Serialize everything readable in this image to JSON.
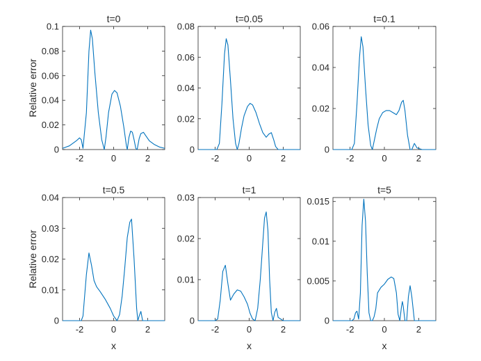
{
  "chart_data": [
    {
      "type": "line",
      "title": "t=0",
      "xlabel": "",
      "ylabel": "Relative error",
      "xlim": [
        -3,
        3
      ],
      "ylim": [
        0,
        0.1
      ],
      "xticks": [
        -2,
        0,
        2
      ],
      "xtick_labels": [
        "-2",
        "0",
        "2"
      ],
      "yticks": [
        0,
        0.02,
        0.04,
        0.06,
        0.08,
        0.1
      ],
      "ytick_labels": [
        "0",
        "0.02",
        "0.04",
        "0.06",
        "0.08",
        "0.1"
      ],
      "color": "#0072BD",
      "x": [
        -3,
        -2.6,
        -2.2,
        -2.0,
        -1.9,
        -1.8,
        -1.6,
        -1.45,
        -1.35,
        -1.25,
        -1.1,
        -0.9,
        -0.7,
        -0.55,
        -0.45,
        -0.3,
        -0.1,
        0.05,
        0.2,
        0.4,
        0.6,
        0.75,
        0.8,
        0.9,
        1.0,
        1.1,
        1.2,
        1.3,
        1.38,
        1.5,
        1.6,
        1.75,
        1.9,
        2.1,
        2.4,
        2.7,
        3.0
      ],
      "y": [
        0.001,
        0.003,
        0.007,
        0.0095,
        0.008,
        0.001,
        0.03,
        0.08,
        0.097,
        0.09,
        0.062,
        0.03,
        0.008,
        0.0,
        0.01,
        0.03,
        0.045,
        0.048,
        0.046,
        0.035,
        0.018,
        0.003,
        0.0,
        0.01,
        0.015,
        0.014,
        0.008,
        0.001,
        0.0,
        0.009,
        0.013,
        0.014,
        0.011,
        0.007,
        0.004,
        0.002,
        0.001
      ]
    },
    {
      "type": "line",
      "title": "t=0.05",
      "xlabel": "",
      "ylabel": "",
      "xlim": [
        -3,
        3
      ],
      "ylim": [
        0,
        0.08
      ],
      "xticks": [
        -2,
        0,
        2
      ],
      "xtick_labels": [
        "-2",
        "0",
        "2"
      ],
      "yticks": [
        0,
        0.02,
        0.04,
        0.06,
        0.08
      ],
      "ytick_labels": [
        "0",
        "0.02",
        "0.04",
        "0.06",
        "0.08"
      ],
      "color": "#0072BD",
      "x": [
        -3,
        -2.2,
        -1.9,
        -1.75,
        -1.6,
        -1.45,
        -1.35,
        -1.25,
        -1.1,
        -0.95,
        -0.8,
        -0.7,
        -0.6,
        -0.45,
        -0.3,
        -0.1,
        0.05,
        0.2,
        0.4,
        0.6,
        0.8,
        1.0,
        1.15,
        1.3,
        1.45,
        1.55,
        1.7,
        2.0,
        2.5,
        3.0
      ],
      "y": [
        0.0,
        0.0,
        0.0,
        0.004,
        0.03,
        0.062,
        0.072,
        0.068,
        0.045,
        0.02,
        0.004,
        0.0,
        0.004,
        0.014,
        0.022,
        0.028,
        0.03,
        0.029,
        0.024,
        0.017,
        0.011,
        0.008,
        0.01,
        0.011,
        0.006,
        0.002,
        0.0,
        0.0,
        0.0,
        0.0
      ]
    },
    {
      "type": "line",
      "title": "t=0.1",
      "xlabel": "",
      "ylabel": "",
      "xlim": [
        -3,
        3
      ],
      "ylim": [
        0,
        0.06
      ],
      "xticks": [
        -2,
        0,
        2
      ],
      "xtick_labels": [
        "-2",
        "0",
        "2"
      ],
      "yticks": [
        0,
        0.02,
        0.04,
        0.06
      ],
      "ytick_labels": [
        "0",
        "0.02",
        "0.04",
        "0.06"
      ],
      "color": "#0072BD",
      "x": [
        -3,
        -2.2,
        -1.9,
        -1.75,
        -1.6,
        -1.45,
        -1.35,
        -1.25,
        -1.1,
        -0.95,
        -0.8,
        -0.7,
        -0.6,
        -0.45,
        -0.3,
        -0.1,
        0.1,
        0.3,
        0.5,
        0.7,
        0.85,
        1.0,
        1.1,
        1.2,
        1.35,
        1.5,
        1.6,
        1.75,
        1.9,
        2.2,
        2.6,
        3.0
      ],
      "y": [
        0.0,
        0.0,
        0.0,
        0.003,
        0.022,
        0.045,
        0.055,
        0.05,
        0.03,
        0.012,
        0.002,
        0.0,
        0.004,
        0.01,
        0.015,
        0.018,
        0.019,
        0.019,
        0.018,
        0.017,
        0.019,
        0.023,
        0.024,
        0.019,
        0.007,
        0.0,
        0.0,
        0.003,
        0.0008,
        0.0,
        0.0,
        0.0
      ]
    },
    {
      "type": "line",
      "title": "t=0.5",
      "xlabel": "x",
      "ylabel": "Relative error",
      "xlim": [
        -3,
        3
      ],
      "ylim": [
        0,
        0.04
      ],
      "xticks": [
        -2,
        0,
        2
      ],
      "xtick_labels": [
        "-2",
        "0",
        "2"
      ],
      "yticks": [
        0,
        0.01,
        0.02,
        0.03,
        0.04
      ],
      "ytick_labels": [
        "0",
        "0.01",
        "0.02",
        "0.03",
        "0.04"
      ],
      "color": "#0072BD",
      "x": [
        -3,
        -2.3,
        -2.0,
        -1.9,
        -1.8,
        -1.6,
        -1.45,
        -1.3,
        -1.15,
        -1.0,
        -0.8,
        -0.5,
        -0.2,
        0.0,
        0.2,
        0.35,
        0.5,
        0.65,
        0.8,
        0.95,
        1.05,
        1.2,
        1.35,
        1.42,
        1.5,
        1.6,
        1.7,
        2.0,
        2.5,
        3.0
      ],
      "y": [
        0.0,
        0.0,
        0.0,
        0.0,
        0.0015,
        0.015,
        0.022,
        0.018,
        0.013,
        0.011,
        0.0095,
        0.007,
        0.004,
        0.0015,
        0.0,
        0.002,
        0.008,
        0.017,
        0.027,
        0.032,
        0.033,
        0.02,
        0.004,
        0.0,
        0.0015,
        0.003,
        0.0,
        0.0,
        0.0,
        0.0
      ]
    },
    {
      "type": "line",
      "title": "t=1",
      "xlabel": "x",
      "ylabel": "",
      "xlim": [
        -3,
        3
      ],
      "ylim": [
        0,
        0.03
      ],
      "xticks": [
        -2,
        0,
        2
      ],
      "xtick_labels": [
        "-2",
        "0",
        "2"
      ],
      "yticks": [
        0,
        0.01,
        0.02,
        0.03
      ],
      "ytick_labels": [
        "0",
        "0.01",
        "0.02",
        "0.03"
      ],
      "color": "#0072BD",
      "x": [
        -3,
        -2.2,
        -2.0,
        -1.85,
        -1.7,
        -1.55,
        -1.4,
        -1.25,
        -1.1,
        -0.9,
        -0.7,
        -0.5,
        -0.3,
        -0.1,
        0.05,
        0.2,
        0.35,
        0.5,
        0.65,
        0.8,
        0.9,
        1.0,
        1.1,
        1.2,
        1.3,
        1.4,
        1.5,
        1.6,
        1.7,
        2.0,
        2.5,
        3.0
      ],
      "y": [
        0.0,
        0.0,
        0.0,
        0.0004,
        0.005,
        0.012,
        0.0135,
        0.009,
        0.005,
        0.0065,
        0.0075,
        0.0072,
        0.0058,
        0.004,
        0.0018,
        0.0004,
        0.0,
        0.003,
        0.01,
        0.019,
        0.025,
        0.0265,
        0.022,
        0.01,
        0.002,
        0.0,
        0.002,
        0.003,
        0.0008,
        0.0,
        0.0,
        0.0
      ]
    },
    {
      "type": "line",
      "title": "t=5",
      "xlabel": "x",
      "ylabel": "",
      "xlim": [
        -3,
        3
      ],
      "ylim": [
        0,
        0.0155
      ],
      "xticks": [
        -2,
        0,
        2
      ],
      "xtick_labels": [
        "-2",
        "0",
        "2"
      ],
      "yticks": [
        0,
        0.005,
        0.01,
        0.015
      ],
      "ytick_labels": [
        "0",
        "0.005",
        "0.01",
        "0.015"
      ],
      "color": "#0072BD",
      "x": [
        -3,
        -2.2,
        -1.9,
        -1.78,
        -1.68,
        -1.6,
        -1.5,
        -1.4,
        -1.3,
        -1.2,
        -1.1,
        -1.0,
        -0.9,
        -0.8,
        -0.7,
        -0.6,
        -0.5,
        -0.4,
        -0.2,
        0.0,
        0.2,
        0.4,
        0.55,
        0.7,
        0.8,
        0.9,
        1.0,
        1.05,
        1.1,
        1.2,
        1.3,
        1.4,
        1.5,
        1.6,
        1.75,
        2.0,
        2.5,
        3.0
      ],
      "y": [
        0.0,
        0.0,
        0.0,
        0.0002,
        0.001,
        0.0012,
        0.0002,
        0.0035,
        0.012,
        0.0153,
        0.0125,
        0.006,
        0.001,
        0.0,
        0.0,
        0.0005,
        0.0015,
        0.0035,
        0.0042,
        0.0046,
        0.0052,
        0.0055,
        0.0053,
        0.0035,
        0.0008,
        0.0,
        0.0018,
        0.0024,
        0.0018,
        0.0,
        0.0,
        0.003,
        0.0044,
        0.003,
        0.0,
        0.0,
        0.0,
        0.0
      ]
    }
  ]
}
